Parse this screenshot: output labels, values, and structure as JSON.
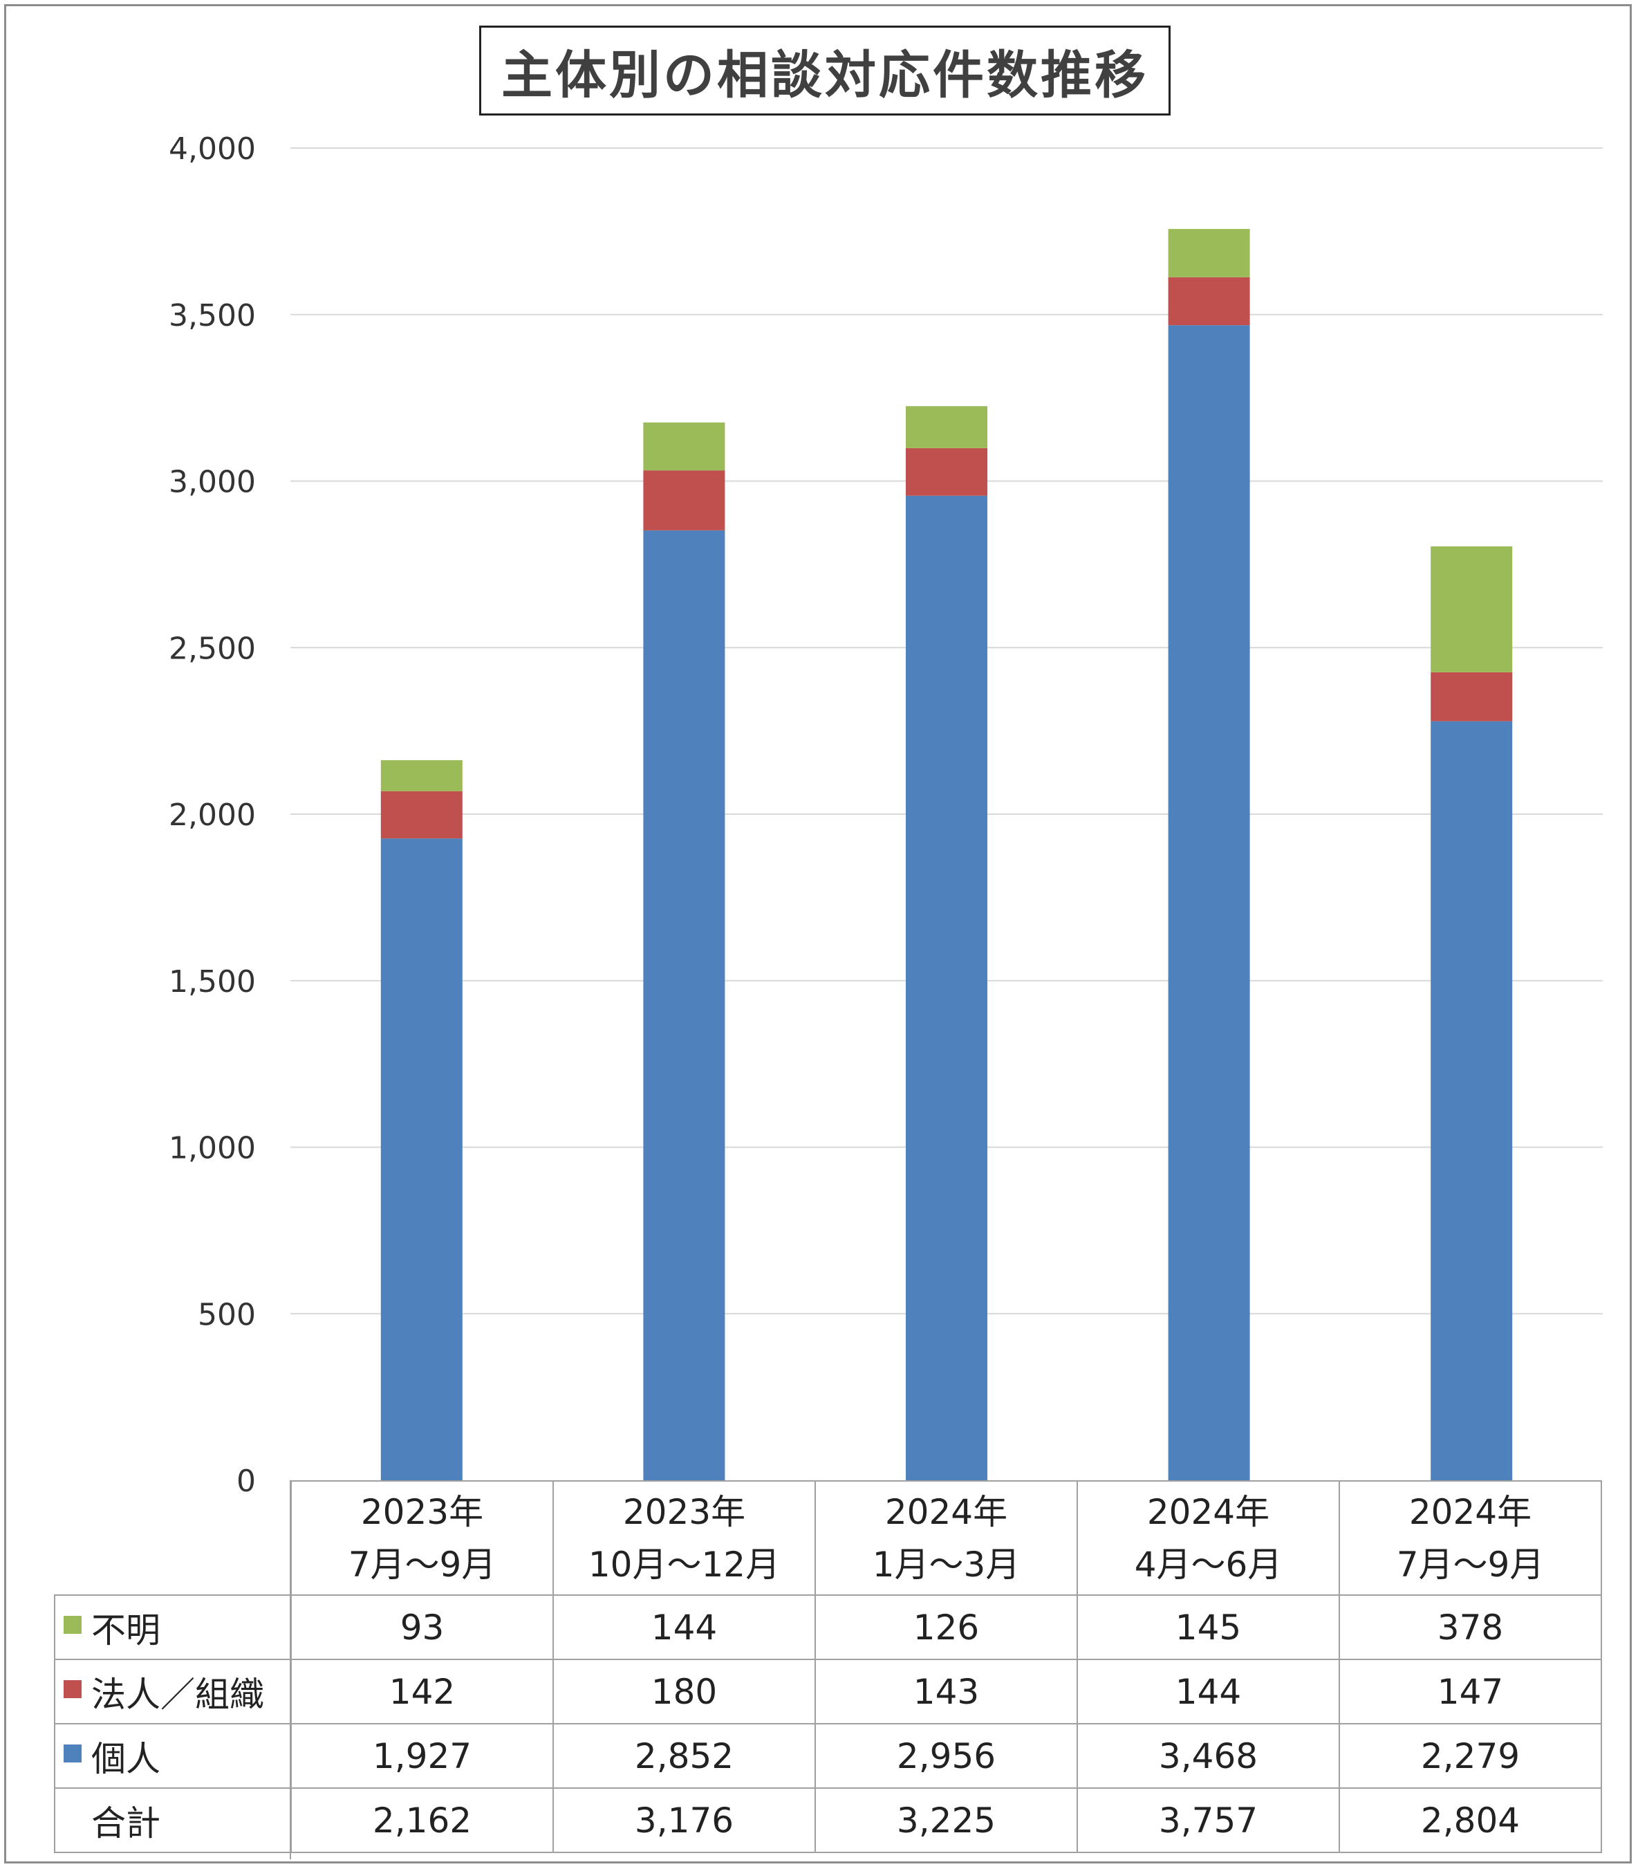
{
  "chart_data": {
    "type": "bar",
    "stacked": true,
    "title": "主体別の相談対応件数推移",
    "categories": [
      "2023年\n7月～9月",
      "2023年\n10月～12月",
      "2024年\n1月～3月",
      "2024年\n4月～6月",
      "2024年\n7月～9月"
    ],
    "series": [
      {
        "name": "個人",
        "color": "#4f81bd",
        "values": [
          1927,
          2852,
          2956,
          3468,
          2279
        ]
      },
      {
        "name": "法人／組織",
        "color": "#c0504d",
        "values": [
          142,
          180,
          143,
          144,
          147
        ]
      },
      {
        "name": "不明",
        "color": "#9bbb59",
        "values": [
          93,
          144,
          126,
          145,
          378
        ]
      }
    ],
    "totals": {
      "name": "合計",
      "values": [
        2162,
        3176,
        3225,
        3757,
        2804
      ]
    },
    "ylim": [
      0,
      4000
    ],
    "yticks": [
      0,
      500,
      1000,
      1500,
      2000,
      2500,
      3000,
      3500,
      4000
    ],
    "grid": true,
    "legend": "data-table"
  },
  "table": {
    "rows": [
      {
        "key": "不明",
        "color": "#9bbb59",
        "values": [
          "93",
          "144",
          "126",
          "145",
          "378"
        ]
      },
      {
        "key": "法人／組織",
        "color": "#c0504d",
        "values": [
          "142",
          "180",
          "143",
          "144",
          "147"
        ]
      },
      {
        "key": "個人",
        "color": "#4f81bd",
        "values": [
          "1,927",
          "2,852",
          "2,956",
          "3,468",
          "2,279"
        ]
      },
      {
        "key": "合計",
        "color": "",
        "values": [
          "2,162",
          "3,176",
          "3,225",
          "3,757",
          "2,804"
        ]
      }
    ]
  }
}
